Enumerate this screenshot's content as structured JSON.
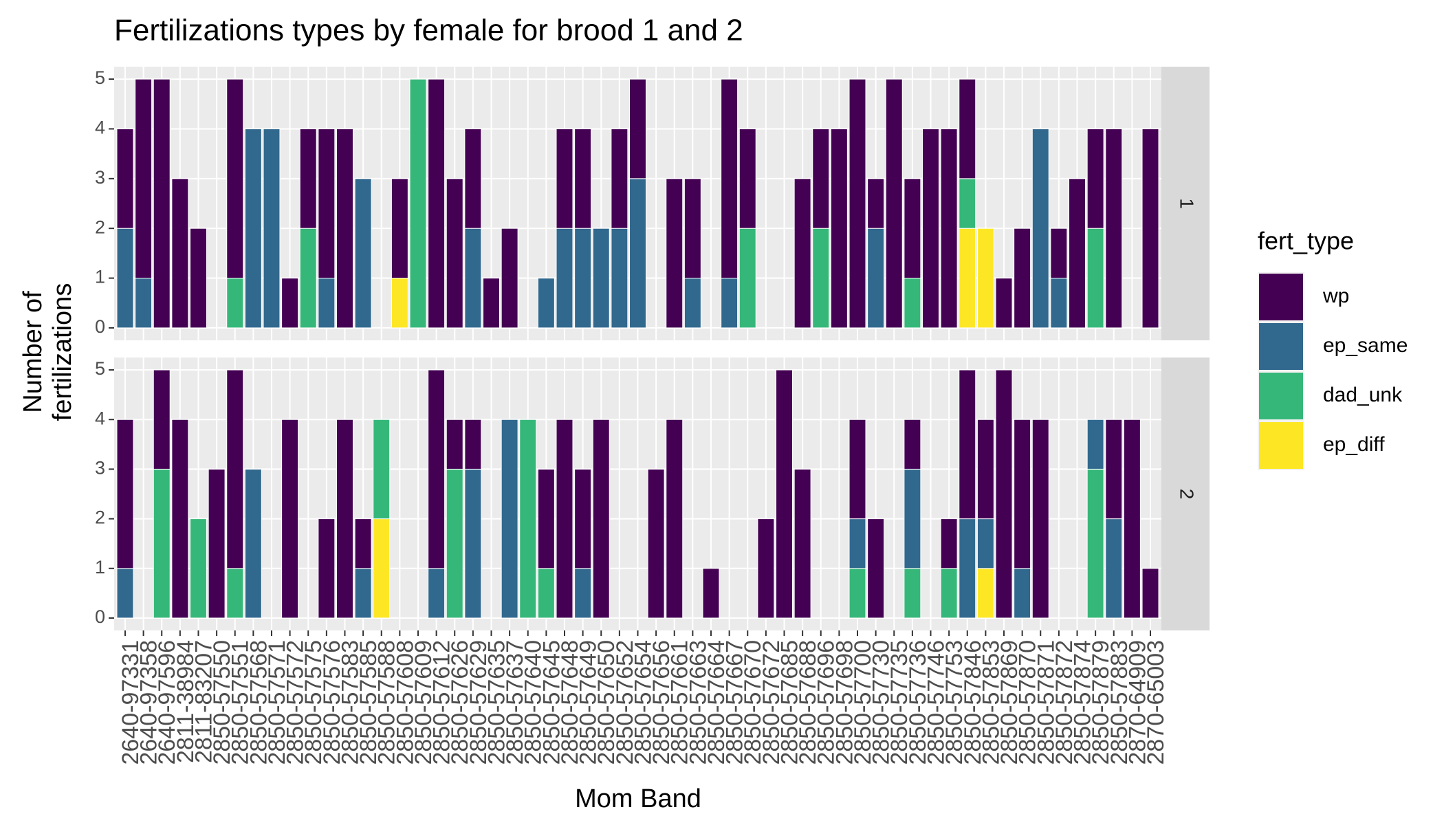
{
  "chart_data": {
    "type": "bar",
    "stacked": true,
    "title": "Fertilizations types by female for brood 1 and 2",
    "x_label": "Mom Band",
    "y_label": [
      "Number of",
      "fertilizations"
    ],
    "legend_title": "fert_type",
    "legend_position": "right",
    "grid": true,
    "categories": [
      "2640-97331",
      "2640-97358",
      "2640-97596",
      "2811-38984",
      "2811-83207",
      "2850-57550",
      "2850-57551",
      "2850-57568",
      "2850-57571",
      "2850-57572",
      "2850-57575",
      "2850-57576",
      "2850-57583",
      "2850-57585",
      "2850-57588",
      "2850-57608",
      "2850-57609",
      "2850-57612",
      "2850-57626",
      "2850-57629",
      "2850-57635",
      "2850-57637",
      "2850-57640",
      "2850-57645",
      "2850-57648",
      "2850-57649",
      "2850-57650",
      "2850-57652",
      "2850-57654",
      "2850-57656",
      "2850-57661",
      "2850-57663",
      "2850-57664",
      "2850-57667",
      "2850-57670",
      "2850-57672",
      "2850-57685",
      "2850-57688",
      "2850-57696",
      "2850-57698",
      "2850-57700",
      "2850-57730",
      "2850-57735",
      "2850-57736",
      "2850-57746",
      "2850-57753",
      "2850-57846",
      "2850-57853",
      "2850-57869",
      "2850-57870",
      "2850-57871",
      "2850-57872",
      "2850-57874",
      "2850-57879",
      "2850-57883",
      "2870-64909",
      "2870-65003"
    ],
    "ylim": [
      -0.25,
      5.25
    ],
    "yticks": [
      0,
      1,
      2,
      3,
      4,
      5
    ],
    "series": [
      {
        "name": "wp",
        "color": "#440154"
      },
      {
        "name": "ep_same",
        "color": "#31688e"
      },
      {
        "name": "dad_unk",
        "color": "#35b779"
      },
      {
        "name": "ep_diff",
        "color": "#fde725"
      }
    ],
    "facets": [
      {
        "label": "1",
        "values": [
          [
            2,
            4,
            5,
            3,
            2,
            null,
            4,
            null,
            null,
            1,
            2,
            3,
            4,
            null,
            null,
            2,
            null,
            5,
            3,
            2,
            1,
            2,
            null,
            null,
            2,
            2,
            null,
            2,
            2,
            null,
            3,
            2,
            null,
            4,
            2,
            null,
            null,
            3,
            2,
            4,
            5,
            1,
            5,
            2,
            4,
            4,
            2,
            null,
            1,
            2,
            null,
            1,
            3,
            2,
            4,
            null,
            4
          ],
          [
            2,
            1,
            null,
            null,
            null,
            null,
            null,
            4,
            4,
            null,
            null,
            1,
            null,
            3,
            null,
            null,
            null,
            null,
            null,
            2,
            null,
            null,
            null,
            1,
            2,
            2,
            2,
            2,
            3,
            null,
            null,
            1,
            null,
            1,
            null,
            null,
            null,
            null,
            null,
            null,
            null,
            2,
            null,
            null,
            null,
            null,
            null,
            null,
            null,
            null,
            4,
            1,
            null,
            null,
            null,
            null,
            null
          ],
          [
            null,
            null,
            null,
            null,
            null,
            null,
            1,
            null,
            null,
            null,
            2,
            null,
            null,
            null,
            null,
            null,
            5,
            null,
            null,
            null,
            null,
            null,
            null,
            null,
            null,
            null,
            null,
            null,
            null,
            null,
            null,
            null,
            null,
            null,
            2,
            null,
            null,
            null,
            2,
            null,
            null,
            null,
            null,
            1,
            null,
            null,
            1,
            null,
            null,
            null,
            null,
            null,
            null,
            2,
            null,
            null,
            null
          ],
          [
            null,
            null,
            null,
            null,
            null,
            null,
            null,
            null,
            null,
            null,
            null,
            null,
            null,
            null,
            null,
            1,
            null,
            null,
            null,
            null,
            null,
            null,
            null,
            null,
            null,
            null,
            null,
            null,
            null,
            null,
            null,
            null,
            null,
            null,
            null,
            null,
            null,
            null,
            null,
            null,
            null,
            null,
            null,
            null,
            null,
            null,
            2,
            2,
            null,
            null,
            null,
            null,
            null,
            null,
            null,
            null,
            null
          ]
        ]
      },
      {
        "label": "2",
        "values": [
          [
            3,
            null,
            2,
            4,
            null,
            3,
            4,
            null,
            null,
            4,
            null,
            2,
            4,
            1,
            null,
            null,
            null,
            4,
            1,
            1,
            null,
            null,
            null,
            2,
            4,
            2,
            4,
            null,
            null,
            3,
            4,
            null,
            1,
            null,
            null,
            2,
            5,
            3,
            null,
            null,
            2,
            2,
            null,
            1,
            null,
            1,
            3,
            2,
            5,
            3,
            4,
            null,
            null,
            null,
            2,
            4,
            1
          ],
          [
            1,
            null,
            null,
            null,
            null,
            null,
            null,
            3,
            null,
            null,
            null,
            null,
            null,
            1,
            null,
            null,
            null,
            1,
            null,
            3,
            null,
            4,
            null,
            null,
            null,
            1,
            null,
            null,
            null,
            null,
            null,
            null,
            null,
            null,
            null,
            null,
            null,
            null,
            null,
            null,
            1,
            null,
            null,
            2,
            null,
            null,
            2,
            1,
            null,
            1,
            null,
            null,
            null,
            1,
            2,
            null,
            null
          ],
          [
            null,
            null,
            3,
            null,
            2,
            null,
            1,
            null,
            null,
            null,
            null,
            null,
            null,
            null,
            2,
            null,
            null,
            null,
            3,
            null,
            null,
            null,
            4,
            1,
            null,
            null,
            null,
            null,
            null,
            null,
            null,
            null,
            null,
            null,
            null,
            null,
            null,
            null,
            null,
            null,
            1,
            null,
            null,
            1,
            null,
            1,
            null,
            null,
            null,
            null,
            null,
            null,
            null,
            3,
            null,
            null,
            null
          ],
          [
            null,
            null,
            null,
            null,
            null,
            null,
            null,
            null,
            null,
            null,
            null,
            null,
            null,
            null,
            2,
            null,
            null,
            null,
            null,
            null,
            null,
            null,
            null,
            null,
            null,
            null,
            null,
            null,
            null,
            null,
            null,
            null,
            null,
            null,
            null,
            null,
            null,
            null,
            null,
            null,
            null,
            null,
            null,
            null,
            null,
            null,
            null,
            1,
            null,
            null,
            null,
            null,
            null,
            null,
            null,
            null,
            null
          ]
        ]
      }
    ]
  }
}
